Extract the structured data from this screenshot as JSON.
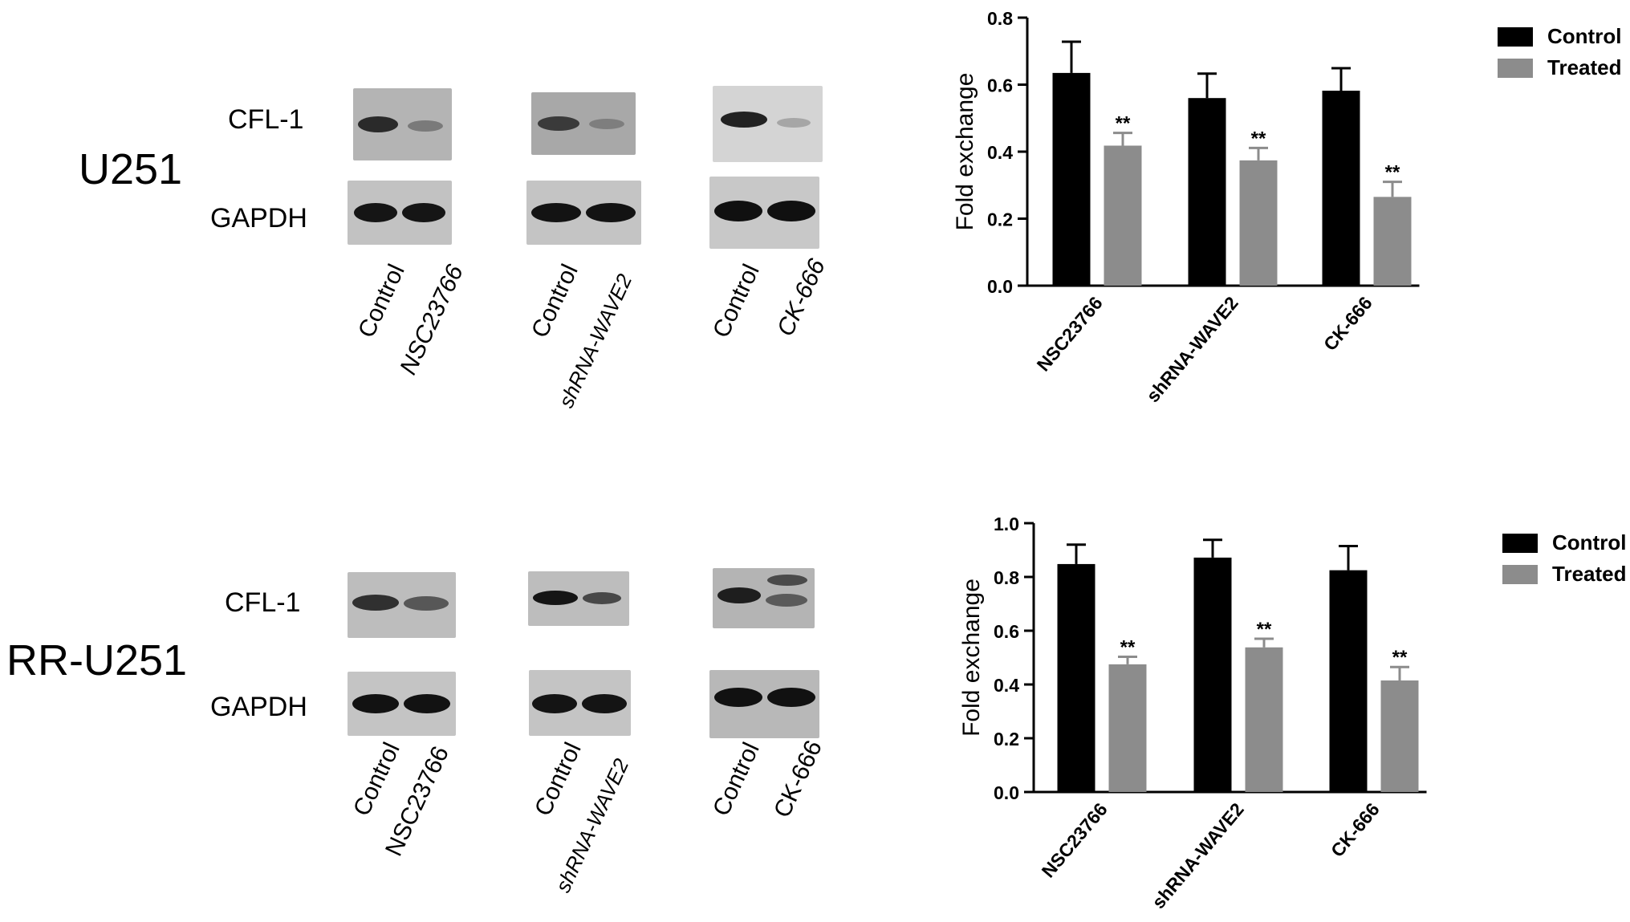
{
  "panels": [
    {
      "cell_line": "U251",
      "proteins": [
        "CFL-1",
        "GAPDH"
      ],
      "blot_groups": [
        {
          "lanes": [
            "Control",
            "NSC23766"
          ]
        },
        {
          "lanes": [
            "Control",
            "shRNA-WAVE2"
          ]
        },
        {
          "lanes": [
            "Control",
            "CK-666"
          ]
        }
      ]
    },
    {
      "cell_line": "RR-U251",
      "proteins": [
        "CFL-1",
        "GAPDH"
      ],
      "blot_groups": [
        {
          "lanes": [
            "Control",
            "NSC23766"
          ]
        },
        {
          "lanes": [
            "Control",
            "shRNA-WAVE2"
          ]
        },
        {
          "lanes": [
            "Control",
            "CK-666"
          ]
        }
      ]
    }
  ],
  "colors": {
    "control": "#000000",
    "treated": "#8c8c8c"
  },
  "chart_data": [
    {
      "type": "bar",
      "categories": [
        "NSC23766",
        "shRNA-WAVE2",
        "CK-666"
      ],
      "series": [
        {
          "name": "Control",
          "values": [
            0.635,
            0.56,
            0.582
          ],
          "errors": [
            0.093,
            0.073,
            0.067
          ]
        },
        {
          "name": "Treated",
          "values": [
            0.418,
            0.374,
            0.265
          ],
          "errors": [
            0.038,
            0.037,
            0.045
          ]
        }
      ],
      "significance": [
        "**",
        "**",
        "**"
      ],
      "ylabel": "Fold exchange",
      "ylim": [
        0,
        0.8
      ],
      "yticks": [
        "0.0",
        "0.2",
        "0.4",
        "0.6",
        "0.8"
      ],
      "legend": "top-right",
      "grid": false
    },
    {
      "type": "bar",
      "categories": [
        "NSC23766",
        "shRNA-WAVE2",
        "CK-666"
      ],
      "series": [
        {
          "name": "Control",
          "values": [
            0.848,
            0.872,
            0.825
          ],
          "errors": [
            0.072,
            0.066,
            0.09
          ]
        },
        {
          "name": "Treated",
          "values": [
            0.475,
            0.538,
            0.415
          ],
          "errors": [
            0.028,
            0.032,
            0.05
          ]
        }
      ],
      "significance": [
        "**",
        "**",
        "**"
      ],
      "ylabel": "Fold exchange",
      "ylim": [
        0,
        1.0
      ],
      "yticks": [
        "0.0",
        "0.2",
        "0.4",
        "0.6",
        "0.8",
        "1.0"
      ],
      "legend": "top-right",
      "grid": false
    }
  ]
}
